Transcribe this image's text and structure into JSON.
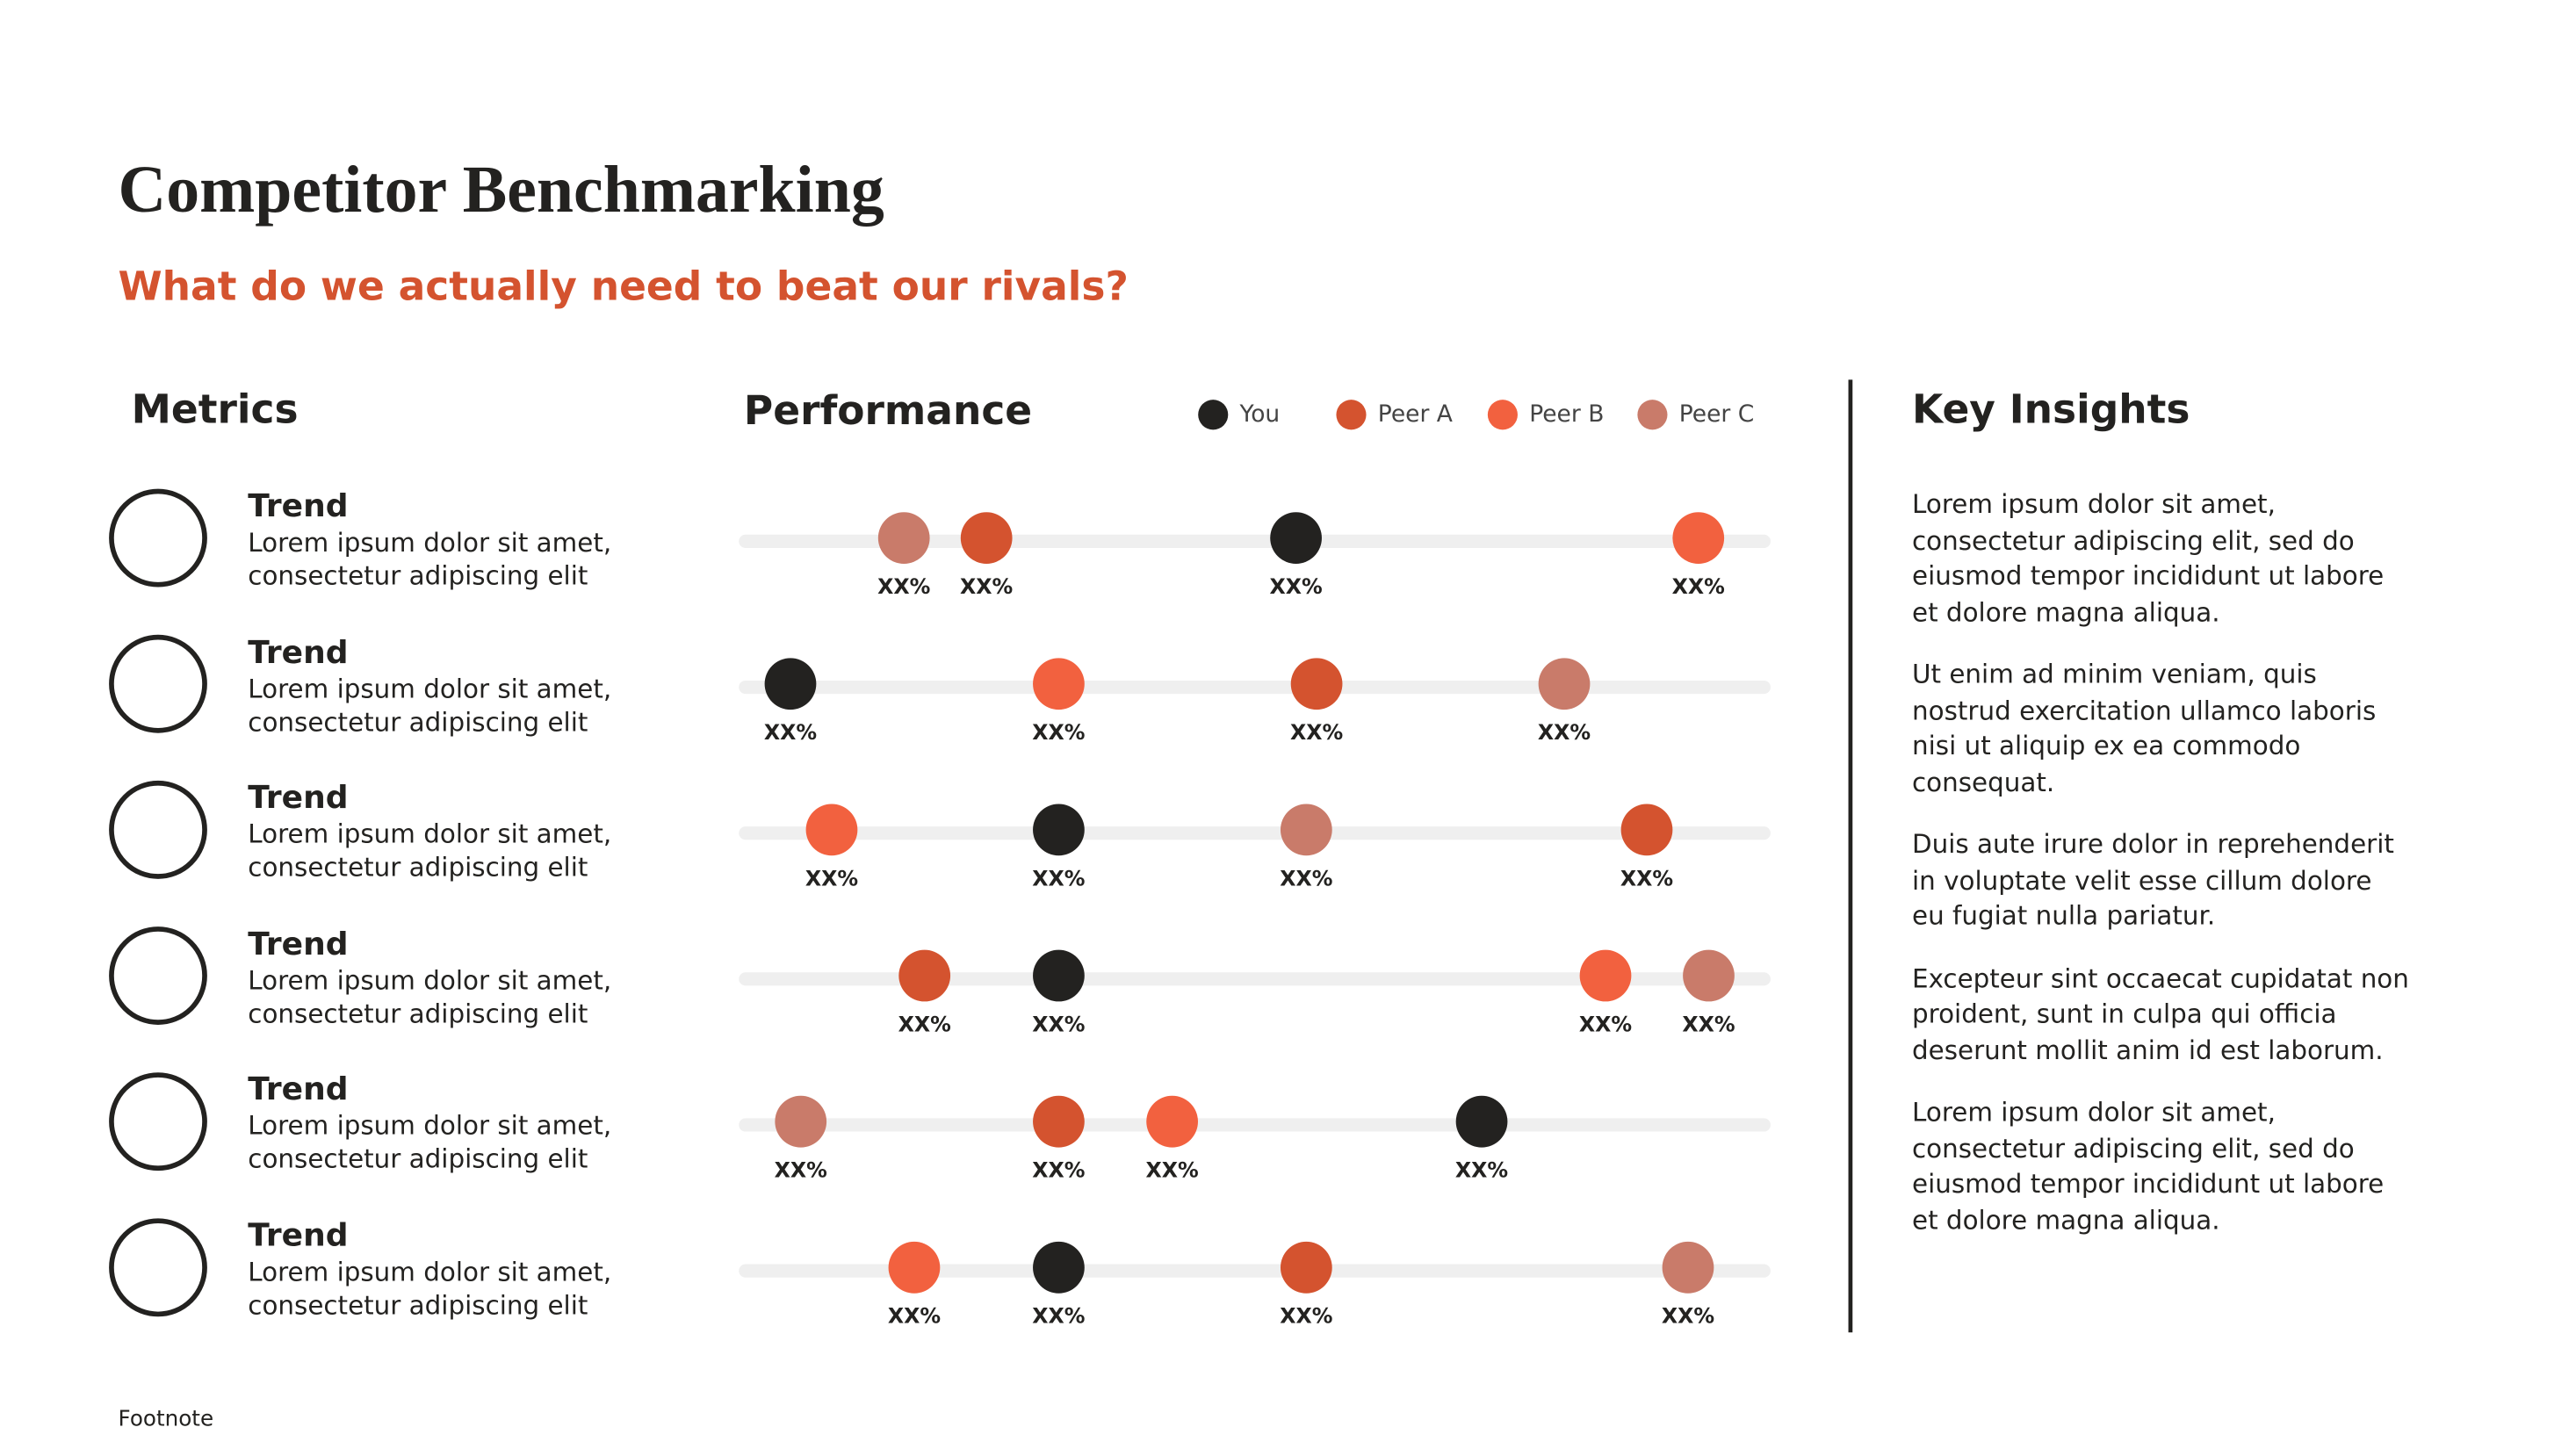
{
  "header": {
    "title": "Competitor Benchmarking",
    "subtitle": "What do we actually need to beat our rivals?"
  },
  "metrics": {
    "heading": "Metrics"
  },
  "chart_data": {
    "type": "dot",
    "title": "Performance",
    "categories": [
      "Trend",
      "Trend",
      "Trend",
      "Trend",
      "Trend",
      "Trend"
    ],
    "category_notes": [
      "Lorem ipsum dolor sit amet, consectetur adipiscing elit",
      "Lorem ipsum dolor sit amet, consectetur adipiscing elit",
      "Lorem ipsum dolor sit amet, consectetur adipiscing elit",
      "Lorem ipsum dolor sit amet, consectetur adipiscing elit",
      "Lorem ipsum dolor sit amet, consectetur adipiscing elit",
      "Lorem ipsum dolor sit amet, consectetur adipiscing elit"
    ],
    "xlim": [
      0,
      100
    ],
    "series": [
      {
        "name": "You",
        "color": "#232220",
        "values": [
          54,
          5,
          31,
          31,
          72,
          31
        ],
        "value_labels": [
          "XX%",
          "XX%",
          "XX%",
          "XX%",
          "XX%",
          "XX%"
        ]
      },
      {
        "name": "Peer A",
        "color": "#d4532f",
        "values": [
          24,
          56,
          88,
          18,
          31,
          55
        ],
        "value_labels": [
          "XX%",
          "XX%",
          "XX%",
          "XX%",
          "XX%",
          "XX%"
        ]
      },
      {
        "name": "Peer B",
        "color": "#f2613f",
        "values": [
          93,
          31,
          9,
          84,
          42,
          17
        ],
        "value_labels": [
          "XX%",
          "XX%",
          "XX%",
          "XX%",
          "XX%",
          "XX%"
        ]
      },
      {
        "name": "Peer C",
        "color": "#c97b6a",
        "values": [
          16,
          80,
          55,
          94,
          6,
          92
        ],
        "value_labels": [
          "XX%",
          "XX%",
          "XX%",
          "XX%",
          "XX%",
          "XX%"
        ]
      }
    ]
  },
  "insights": {
    "heading": "Key Insights",
    "paragraphs": [
      "Lorem ipsum dolor sit amet, consectetur adipiscing elit, sed do eiusmod tempor incididunt ut labore et dolore magna aliqua.",
      "Ut enim ad minim veniam, quis nostrud exercitation ullamco laboris nisi ut aliquip ex ea commodo consequat.",
      "Duis aute irure dolor in reprehenderit in voluptate velit esse cillum dolore eu fugiat nulla pariatur.",
      "Excepteur sint occaecat cupidatat non proident, sunt in culpa qui officia deserunt mollit anim id est laborum.",
      "Lorem ipsum dolor sit amet, consectetur adipiscing elit, sed do eiusmod tempor incididunt ut labore et dolore magna aliqua."
    ]
  },
  "footnote": "Footnote"
}
